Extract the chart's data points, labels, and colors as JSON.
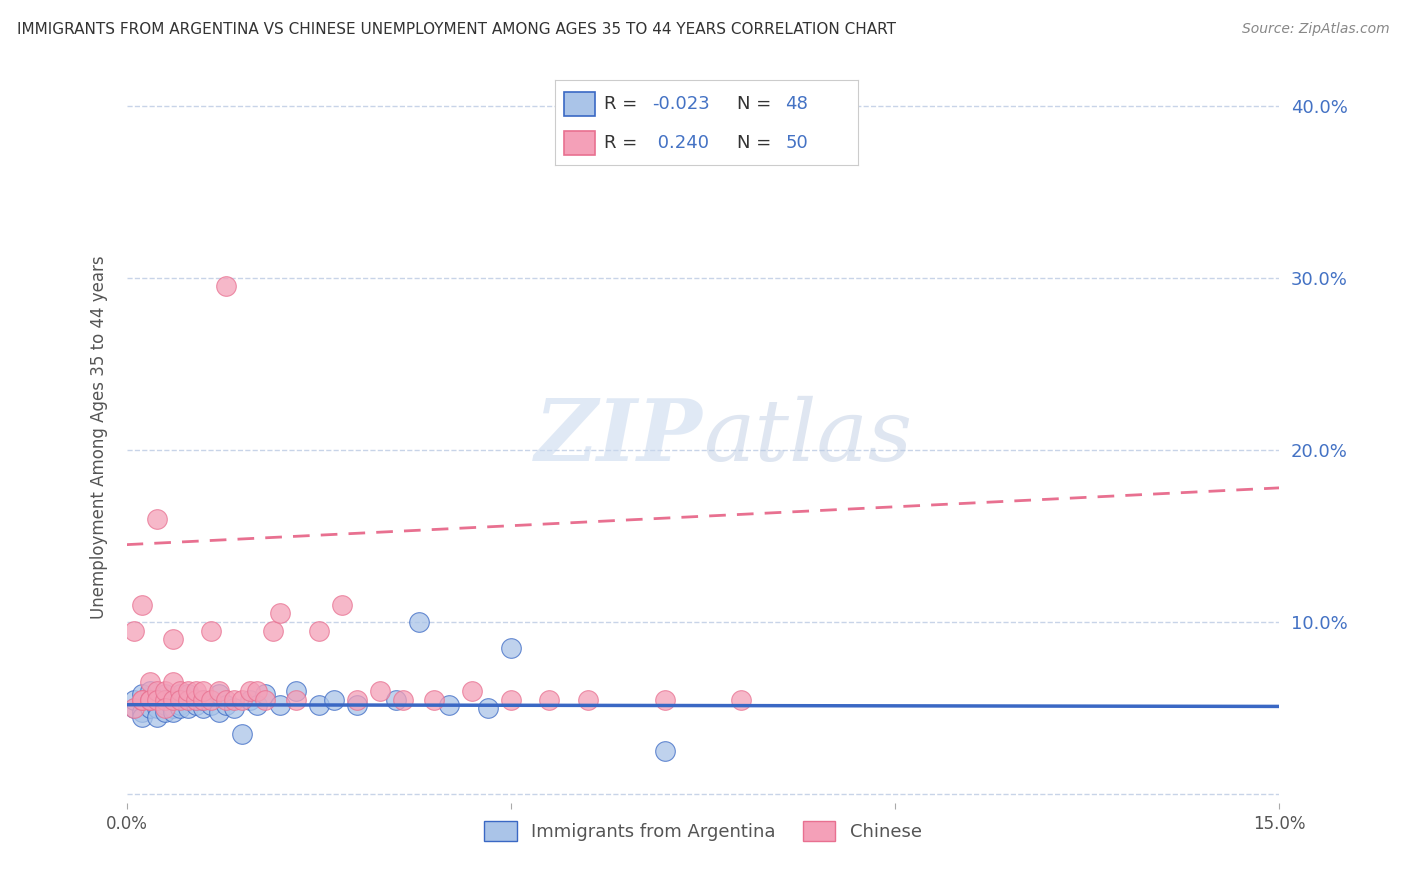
{
  "title": "IMMIGRANTS FROM ARGENTINA VS CHINESE UNEMPLOYMENT AMONG AGES 35 TO 44 YEARS CORRELATION CHART",
  "source": "Source: ZipAtlas.com",
  "ylabel": "Unemployment Among Ages 35 to 44 years",
  "xlim": [
    0.0,
    0.15
  ],
  "ylim": [
    -0.005,
    0.42
  ],
  "yticks": [
    0.0,
    0.1,
    0.2,
    0.3,
    0.4
  ],
  "ytick_labels": [
    "",
    "10.0%",
    "20.0%",
    "30.0%",
    "40.0%"
  ],
  "xticks": [
    0.0,
    0.05,
    0.1,
    0.15
  ],
  "xtick_labels": [
    "0.0%",
    "",
    "",
    "15.0%"
  ],
  "background_color": "#ffffff",
  "grid_color": "#c8d4e8",
  "series1_color": "#aac4e8",
  "series2_color": "#f4a0b8",
  "line1_color": "#3a68c4",
  "line2_color": "#e87090",
  "series1_label": "Immigrants from Argentina",
  "series2_label": "Chinese",
  "legend_R1": "-0.023",
  "legend_N1": "48",
  "legend_R2": "0.240",
  "legend_N2": "50",
  "argentina_x": [
    0.001,
    0.001,
    0.002,
    0.002,
    0.002,
    0.003,
    0.003,
    0.003,
    0.004,
    0.004,
    0.004,
    0.005,
    0.005,
    0.005,
    0.005,
    0.006,
    0.006,
    0.006,
    0.007,
    0.007,
    0.007,
    0.008,
    0.008,
    0.008,
    0.009,
    0.009,
    0.01,
    0.01,
    0.011,
    0.012,
    0.012,
    0.013,
    0.014,
    0.015,
    0.016,
    0.017,
    0.018,
    0.02,
    0.022,
    0.025,
    0.027,
    0.03,
    0.035,
    0.038,
    0.042,
    0.047,
    0.05,
    0.07
  ],
  "argentina_y": [
    0.05,
    0.055,
    0.048,
    0.058,
    0.045,
    0.05,
    0.055,
    0.06,
    0.05,
    0.055,
    0.045,
    0.052,
    0.058,
    0.048,
    0.055,
    0.05,
    0.055,
    0.048,
    0.052,
    0.058,
    0.05,
    0.055,
    0.05,
    0.058,
    0.052,
    0.055,
    0.05,
    0.055,
    0.052,
    0.048,
    0.058,
    0.052,
    0.05,
    0.035,
    0.055,
    0.052,
    0.058,
    0.052,
    0.06,
    0.052,
    0.055,
    0.052,
    0.055,
    0.1,
    0.052,
    0.05,
    0.085,
    0.025
  ],
  "chinese_x": [
    0.001,
    0.001,
    0.002,
    0.002,
    0.002,
    0.003,
    0.003,
    0.003,
    0.004,
    0.004,
    0.004,
    0.005,
    0.005,
    0.005,
    0.006,
    0.006,
    0.006,
    0.007,
    0.007,
    0.008,
    0.008,
    0.009,
    0.009,
    0.01,
    0.01,
    0.011,
    0.011,
    0.012,
    0.013,
    0.013,
    0.014,
    0.015,
    0.016,
    0.017,
    0.018,
    0.019,
    0.02,
    0.022,
    0.025,
    0.028,
    0.03,
    0.033,
    0.036,
    0.04,
    0.045,
    0.05,
    0.055,
    0.06,
    0.07,
    0.08
  ],
  "chinese_y": [
    0.05,
    0.095,
    0.055,
    0.11,
    0.055,
    0.055,
    0.065,
    0.055,
    0.06,
    0.055,
    0.16,
    0.055,
    0.06,
    0.05,
    0.055,
    0.065,
    0.09,
    0.06,
    0.055,
    0.055,
    0.06,
    0.055,
    0.06,
    0.055,
    0.06,
    0.055,
    0.095,
    0.06,
    0.055,
    0.295,
    0.055,
    0.055,
    0.06,
    0.06,
    0.055,
    0.095,
    0.105,
    0.055,
    0.095,
    0.11,
    0.055,
    0.06,
    0.055,
    0.055,
    0.06,
    0.055,
    0.055,
    0.055,
    0.055,
    0.055
  ],
  "argentina_line_x": [
    0.0,
    0.15
  ],
  "argentina_line_y": [
    0.052,
    0.051
  ],
  "chinese_line_x": [
    0.0,
    0.15
  ],
  "chinese_line_y": [
    0.145,
    0.175
  ]
}
